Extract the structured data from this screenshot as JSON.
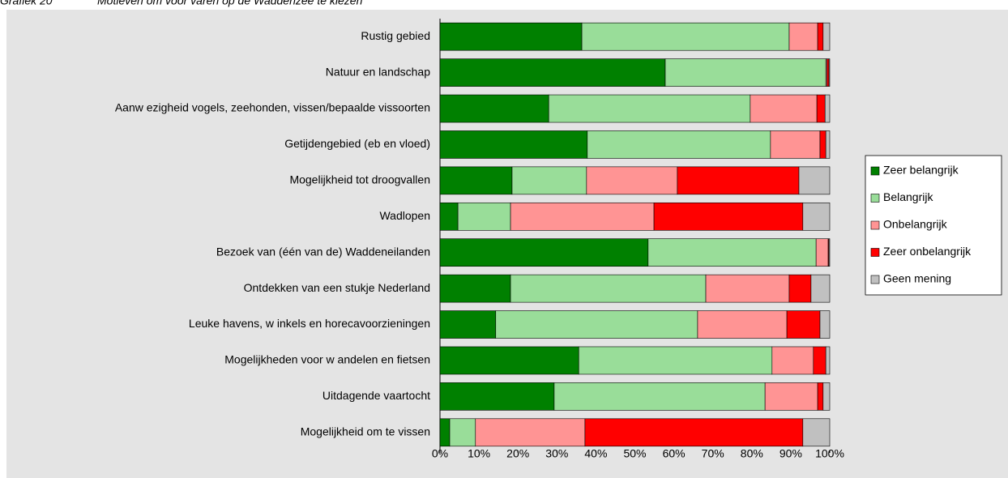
{
  "chart_data": {
    "type": "stacked-barh",
    "label": "Grafiek 20",
    "title": "Motieven om voor varen op de Waddenzee te kiezen",
    "categories": [
      "Rustig gebied",
      "Natuur en landschap",
      "Aanw ezigheid vogels, zeehonden, vissen/bepaalde vissoorten",
      "Getijdengebied (eb en vloed)",
      "Mogelijkheid tot droogvallen",
      "Wadlopen",
      "Bezoek van (één van de) Waddeneilanden",
      "Ontdekken van een stukje Nederland",
      "Leuke havens, w inkels en horecavoorzieningen",
      "Mogelijkheden voor w andelen en fietsen",
      "Uitdagende vaartocht",
      "Mogelijkheid om te vissen"
    ],
    "series": [
      {
        "name": "Zeer belangrijk",
        "color": "#008000",
        "values": [
          36.4,
          57.8,
          27.9,
          37.8,
          18.5,
          4.6,
          53.4,
          18.1,
          14.3,
          35.6,
          29.3,
          2.5
        ]
      },
      {
        "name": "Belangrijk",
        "color": "#99dd99",
        "values": [
          53.2,
          41.2,
          51.7,
          47.0,
          19.1,
          13.5,
          43.1,
          50.1,
          51.8,
          49.6,
          54.1,
          6.6
        ]
      },
      {
        "name": "Onbelangrijk",
        "color": "#ff9494",
        "values": [
          7.3,
          0.3,
          17.1,
          12.7,
          23.3,
          36.8,
          3.1,
          21.4,
          22.9,
          10.6,
          13.5,
          28.1
        ]
      },
      {
        "name": "Zeer onbelangrijk",
        "color": "#ff0000",
        "values": [
          1.4,
          0.5,
          2.1,
          1.5,
          31.2,
          38.2,
          0.2,
          5.6,
          8.5,
          3.2,
          1.4,
          55.9
        ]
      },
      {
        "name": "Geen mening",
        "color": "#c0c0c0",
        "values": [
          1.7,
          0.2,
          1.2,
          1.0,
          7.9,
          6.9,
          0.2,
          4.8,
          2.5,
          1.0,
          1.7,
          6.9
        ]
      }
    ],
    "xlim": [
      0,
      100
    ],
    "xticks": [
      {
        "value": 0,
        "label": "0%"
      },
      {
        "value": 10,
        "label": "10%"
      },
      {
        "value": 20,
        "label": "20%"
      },
      {
        "value": 30,
        "label": "30%"
      },
      {
        "value": 40,
        "label": "40%"
      },
      {
        "value": 50,
        "label": "50%"
      },
      {
        "value": 60,
        "label": "60%"
      },
      {
        "value": 70,
        "label": "70%"
      },
      {
        "value": 80,
        "label": "80%"
      },
      {
        "value": 90,
        "label": "90%"
      },
      {
        "value": 100,
        "label": "100%"
      }
    ],
    "legend": "right"
  }
}
